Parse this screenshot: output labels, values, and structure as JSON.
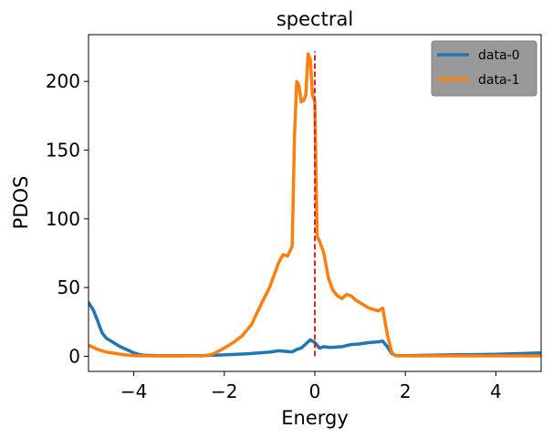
{
  "chart_data": {
    "type": "line",
    "title": "spectral",
    "xlabel": "Energy",
    "ylabel": "PDOS",
    "xlim": [
      -5,
      5
    ],
    "ylim": [
      -11,
      234
    ],
    "xticks": [
      -4,
      -2,
      0,
      2,
      4
    ],
    "xtick_labels": [
      "−4",
      "−2",
      "0",
      "2",
      "4"
    ],
    "yticks": [
      0,
      50,
      100,
      150,
      200
    ],
    "ytick_labels": [
      "0",
      "50",
      "100",
      "150",
      "200"
    ],
    "grid": false,
    "legend": "top-right",
    "vline": {
      "x": 0,
      "ymin": 0,
      "ymax": 222,
      "color": "#d62728",
      "style": "dashed"
    },
    "series": [
      {
        "name": "data-0",
        "color": "#1f77b4",
        "x": [
          -5,
          -4.9,
          -4.8,
          -4.7,
          -4.6,
          -4.5,
          -4.3,
          -4.1,
          -4.0,
          -3.9,
          -3.8,
          -3.5,
          -3.0,
          -2.5,
          -2.0,
          -1.5,
          -1.0,
          -0.8,
          -0.6,
          -0.5,
          -0.4,
          -0.3,
          -0.2,
          -0.1,
          0.0,
          0.1,
          0.2,
          0.3,
          0.4,
          0.6,
          0.8,
          1.0,
          1.2,
          1.4,
          1.5,
          1.6,
          1.7,
          1.8,
          2.0,
          3.0,
          4.0,
          5.0
        ],
        "y": [
          39,
          34,
          26,
          17,
          13,
          11,
          7,
          4,
          2.5,
          1.5,
          0.8,
          0.5,
          0.4,
          0.5,
          1,
          1.8,
          3,
          4,
          3.5,
          3.2,
          5,
          6,
          9,
          12,
          10,
          6,
          7,
          6.5,
          6.5,
          7,
          8.5,
          9,
          10,
          10.5,
          11,
          7,
          2,
          0.5,
          0.5,
          1,
          1.5,
          2.5
        ]
      },
      {
        "name": "data-1",
        "color": "#ff7f0e",
        "x": [
          -5,
          -4.8,
          -4.6,
          -4.4,
          -4.2,
          -4.0,
          -3.8,
          -3.5,
          -3.0,
          -2.5,
          -2.3,
          -2.2,
          -2.0,
          -1.8,
          -1.6,
          -1.4,
          -1.2,
          -1.0,
          -0.8,
          -0.7,
          -0.6,
          -0.5,
          -0.45,
          -0.4,
          -0.35,
          -0.3,
          -0.25,
          -0.2,
          -0.15,
          -0.1,
          -0.05,
          0.0,
          0.05,
          0.1,
          0.2,
          0.3,
          0.4,
          0.5,
          0.6,
          0.7,
          0.8,
          0.9,
          1.0,
          1.2,
          1.4,
          1.5,
          1.6,
          1.7,
          1.75,
          1.8,
          2.0,
          3.0,
          4.0,
          5.0
        ],
        "y": [
          8,
          5,
          3,
          2,
          1,
          0.5,
          0.3,
          0.2,
          0.2,
          0.3,
          1,
          2.5,
          6,
          10,
          15,
          23,
          37,
          50,
          68,
          74,
          73,
          80,
          160,
          200,
          197,
          185,
          186,
          190,
          220,
          216,
          190,
          185,
          87,
          84,
          75,
          57,
          48,
          44,
          42,
          45,
          44,
          41,
          39,
          35,
          33,
          35,
          16,
          3,
          1,
          0.3,
          0.3,
          0.3,
          0.3,
          0.3
        ]
      }
    ]
  }
}
